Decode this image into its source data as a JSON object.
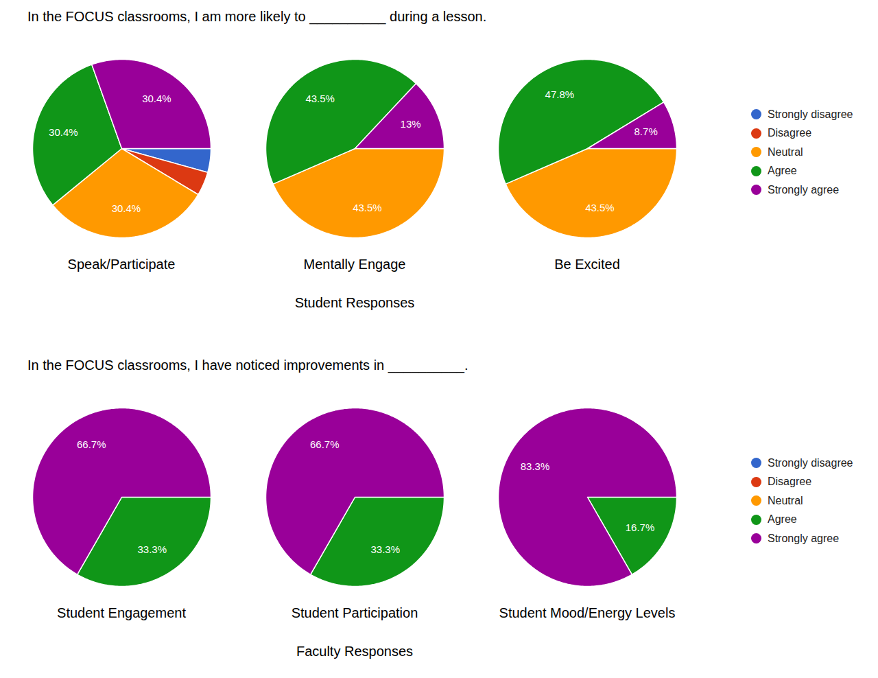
{
  "chart_data": [
    {
      "type": "pie",
      "title": "In the FOCUS classrooms, I am more likely to __________ during a lesson.",
      "caption": "Student Responses",
      "categories": [
        "Strongly disagree",
        "Disagree",
        "Neutral",
        "Agree",
        "Strongly agree"
      ],
      "colors": [
        "#3366cc",
        "#dc3912",
        "#ff9900",
        "#109618",
        "#990099"
      ],
      "legend": "right",
      "data_labels": true,
      "series": [
        {
          "name": "Speak/Participate",
          "values": [
            4.3,
            4.3,
            30.4,
            30.4,
            30.4
          ],
          "value_labels": [
            null,
            null,
            "30.4%",
            "30.4%",
            "30.4%"
          ]
        },
        {
          "name": "Mentally Engage",
          "values": [
            0,
            0,
            43.5,
            43.5,
            13
          ],
          "value_labels": [
            null,
            null,
            "43.5%",
            "43.5%",
            "13%"
          ]
        },
        {
          "name": "Be Excited",
          "values": [
            0,
            0,
            43.5,
            47.8,
            8.7
          ],
          "value_labels": [
            null,
            null,
            "43.5%",
            "47.8%",
            "8.7%"
          ]
        }
      ]
    },
    {
      "type": "pie",
      "title": "In the FOCUS classrooms, I have noticed improvements in __________.",
      "caption": "Faculty Responses",
      "categories": [
        "Strongly disagree",
        "Disagree",
        "Neutral",
        "Agree",
        "Strongly agree"
      ],
      "colors": [
        "#3366cc",
        "#dc3912",
        "#ff9900",
        "#109618",
        "#990099"
      ],
      "legend": "right",
      "data_labels": true,
      "series": [
        {
          "name": "Student Engagement",
          "values": [
            0,
            0,
            0,
            33.3,
            66.7
          ],
          "value_labels": [
            null,
            null,
            null,
            "33.3%",
            "66.7%"
          ]
        },
        {
          "name": "Student Participation",
          "values": [
            0,
            0,
            0,
            33.3,
            66.7
          ],
          "value_labels": [
            null,
            null,
            null,
            "33.3%",
            "66.7%"
          ]
        },
        {
          "name": "Student Mood/Energy Levels",
          "values": [
            0,
            0,
            0,
            16.7,
            83.3
          ],
          "value_labels": [
            null,
            null,
            null,
            "16.7%",
            "83.3%"
          ]
        }
      ]
    }
  ]
}
